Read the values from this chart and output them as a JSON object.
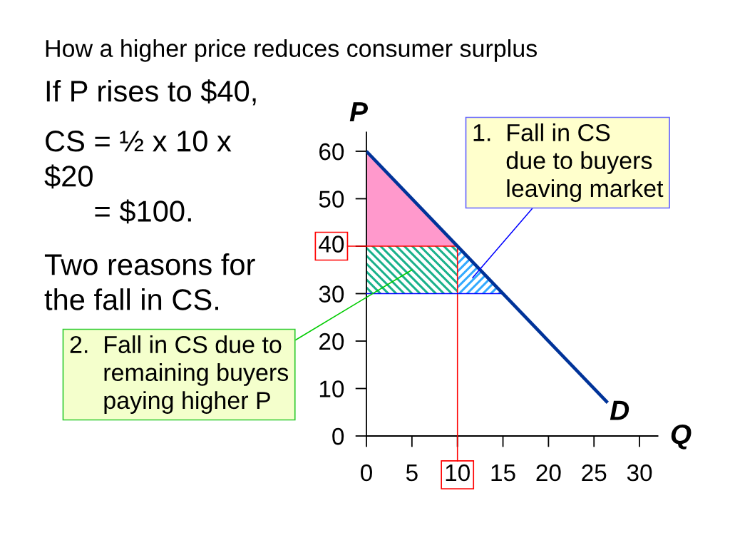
{
  "chart_data": {
    "type": "line",
    "title": "How a higher price reduces consumer surplus",
    "xlabel": "Q",
    "ylabel": "P",
    "xlim": [
      0,
      32
    ],
    "ylim": [
      0,
      64
    ],
    "xticks": [
      0,
      5,
      {
        "value": 10,
        "label": null
      },
      15,
      20,
      25,
      30
    ],
    "yticks": [
      0,
      10,
      20,
      30,
      {
        "value": 40,
        "label": null
      },
      50,
      60
    ],
    "series": [
      {
        "name": "D",
        "color": "#003399",
        "x": [
          0,
          26.5
        ],
        "values": [
          60,
          7
        ]
      },
      {
        "color": "#ff99cc",
        "x": [
          0,
          10
        ],
        "values": [
          null,
          null
        ],
        "lower": [
          40,
          40
        ],
        "upper": [
          60,
          40
        ]
      },
      {
        "color": "#1ab28c",
        "x": [
          0,
          10
        ],
        "values": [
          null,
          null
        ],
        "lower": [
          30,
          30
        ],
        "upper": [
          40,
          40
        ]
      },
      {
        "color": "#33aaff",
        "x": [
          10,
          15
        ],
        "values": [
          null,
          null
        ],
        "lower": [
          30,
          30
        ],
        "upper": [
          40,
          30
        ]
      }
    ],
    "ref_lines": [
      {
        "axis": "x",
        "value": 10,
        "label": "10",
        "color": "#ff0000"
      },
      {
        "axis": "y",
        "value": 40,
        "label": "40",
        "color": "#ff0000"
      },
      {
        "axis": "y",
        "value": 30,
        "color": "#0000ff"
      }
    ],
    "annotations": [
      "If P rises to $40,",
      "CS = ½ x 10 x\n$20\n      = $100.",
      "Two reasons for\nthe fall in CS.",
      "1.  Fall in CS\n     due to buyers\n     leaving market",
      "2.  Fall in CS due to\n     remaining buyers\n     paying higher P"
    ]
  }
}
